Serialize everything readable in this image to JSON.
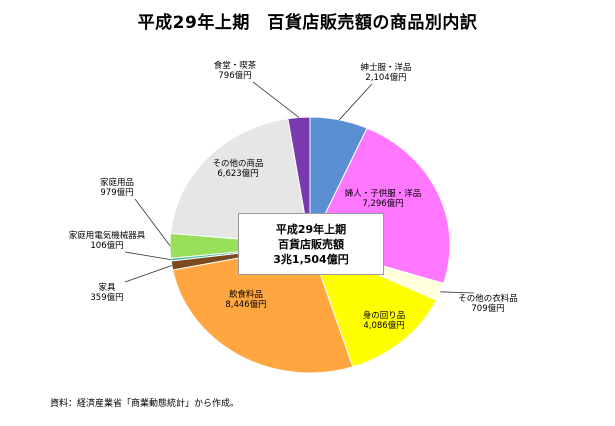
{
  "title": "平成29年上期　百貨店販売額の商品別内訳",
  "center_label": [
    "平成29年上期",
    "百貨店販売額",
    "3兆1,504億円"
  ],
  "source": "資料：経済産業省「商業動態統計」から作成。",
  "chart_data": {
    "type": "pie",
    "unit": "億円",
    "start": "12 o'clock",
    "direction": "clockwise",
    "slices": [
      {
        "name": "紳士服・洋品",
        "value": 2104,
        "label": "2,104億円",
        "color": "#5b8fd4"
      },
      {
        "name": "婦人・子供服・洋品",
        "value": 7296,
        "label": "7,296億円",
        "color": "#ff77ff"
      },
      {
        "name": "その他の衣料品",
        "value": 709,
        "label": "709億円",
        "color": "#ffffdd"
      },
      {
        "name": "身の回り品",
        "value": 4086,
        "label": "4,086億円",
        "color": "#ffff00"
      },
      {
        "name": "飲食料品",
        "value": 8446,
        "label": "8,446億円",
        "color": "#ffa640"
      },
      {
        "name": "家具",
        "value": 359,
        "label": "359億円",
        "color": "#7a4a1e"
      },
      {
        "name": "家庭用電気機械器具",
        "value": 106,
        "label": "106億円",
        "color": "#3cb89a"
      },
      {
        "name": "家庭用品",
        "value": 979,
        "label": "979億円",
        "color": "#99e05a"
      },
      {
        "name": "その他の商品",
        "value": 6623,
        "label": "6,623億円",
        "color": "#e6e6e6"
      },
      {
        "name": "食堂・喫茶",
        "value": 796,
        "label": "796億円",
        "color": "#7b39b0"
      }
    ]
  }
}
